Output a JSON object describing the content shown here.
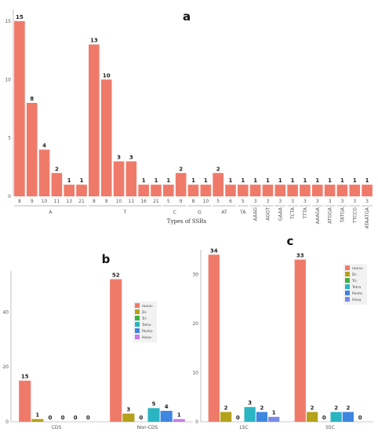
{
  "chart_data": [
    {
      "id": "a",
      "type": "bar",
      "panel_letter": "a",
      "xlabel": "Types of SSRs",
      "ylim": [
        0,
        16
      ],
      "yticks": [
        0,
        5,
        10,
        15
      ],
      "bar_color": "#F07A6A",
      "groups": [
        {
          "label": "A",
          "categories": [
            "8",
            "9",
            "10",
            "11",
            "13",
            "21"
          ],
          "values": [
            15,
            8,
            4,
            2,
            1,
            1
          ]
        },
        {
          "label": "T",
          "categories": [
            "8",
            "9",
            "10",
            "11",
            "16",
            "21"
          ],
          "values": [
            13,
            10,
            3,
            3,
            1,
            1
          ]
        },
        {
          "label": "C",
          "categories": [
            "5",
            "9"
          ],
          "values": [
            1,
            2
          ]
        },
        {
          "label": "G",
          "categories": [
            "8",
            "10"
          ],
          "values": [
            1,
            1
          ]
        },
        {
          "label": "AT",
          "categories": [
            "5",
            "6"
          ],
          "values": [
            2,
            1
          ]
        },
        {
          "label": "TA",
          "categories": [
            "5"
          ],
          "values": [
            1
          ]
        },
        {
          "label": "AAAG",
          "categories": [
            "3"
          ],
          "values": [
            1
          ]
        },
        {
          "label": "AGGT",
          "categories": [
            "3"
          ],
          "values": [
            1
          ]
        },
        {
          "label": "GAAA",
          "categories": [
            "3"
          ],
          "values": [
            1
          ]
        },
        {
          "label": "TCTA",
          "categories": [
            "3"
          ],
          "values": [
            1
          ]
        },
        {
          "label": "TTTA",
          "categories": [
            "3"
          ],
          "values": [
            1
          ]
        },
        {
          "label": "AAAGA",
          "categories": [
            "3"
          ],
          "values": [
            1
          ]
        },
        {
          "label": "ATGGA",
          "categories": [
            "3"
          ],
          "values": [
            1
          ]
        },
        {
          "label": "TATGA",
          "categories": [
            "3"
          ],
          "values": [
            1
          ]
        },
        {
          "label": "TTCCG",
          "categories": [
            "3"
          ],
          "values": [
            1
          ]
        },
        {
          "label": "ATAATGA",
          "categories": [
            "3"
          ],
          "values": [
            1
          ]
        }
      ]
    },
    {
      "id": "b",
      "type": "bar",
      "panel_letter": "b",
      "categories": [
        "CDS",
        "Non-CDS"
      ],
      "ylim": [
        0,
        55
      ],
      "yticks": [
        0,
        20,
        40
      ],
      "series": [
        {
          "name": "mono-",
          "color": "#F07A6A",
          "values": [
            15,
            52
          ]
        },
        {
          "name": "Di-",
          "color": "#B5A21A",
          "values": [
            1,
            3
          ]
        },
        {
          "name": "Tri-",
          "color": "#3FAF3F",
          "values": [
            0,
            0
          ]
        },
        {
          "name": "Tetra-",
          "color": "#2BB5C2",
          "values": [
            0,
            5
          ]
        },
        {
          "name": "Penta-",
          "color": "#3E86E0",
          "values": [
            0,
            4
          ]
        },
        {
          "name": "Hexa-",
          "color": "#C77CE8",
          "values": [
            0,
            1
          ]
        }
      ]
    },
    {
      "id": "c",
      "type": "bar",
      "panel_letter": "c",
      "categories": [
        "LSC",
        "SSC"
      ],
      "ylim": [
        0,
        35
      ],
      "yticks": [
        0,
        10,
        20,
        30
      ],
      "series": [
        {
          "name": "mono-",
          "color": "#F07A6A",
          "values": [
            34,
            33
          ]
        },
        {
          "name": "Di-",
          "color": "#B5A21A",
          "values": [
            2,
            2
          ]
        },
        {
          "name": "Tri-",
          "color": "#3FAF3F",
          "values": [
            0,
            0
          ]
        },
        {
          "name": "Tetra",
          "color": "#2BB5C2",
          "values": [
            3,
            2
          ]
        },
        {
          "name": "Penta",
          "color": "#3E86E0",
          "values": [
            2,
            2
          ]
        },
        {
          "name": "Hexa",
          "color": "#7A8AE8",
          "values": [
            1,
            0
          ]
        }
      ]
    }
  ]
}
